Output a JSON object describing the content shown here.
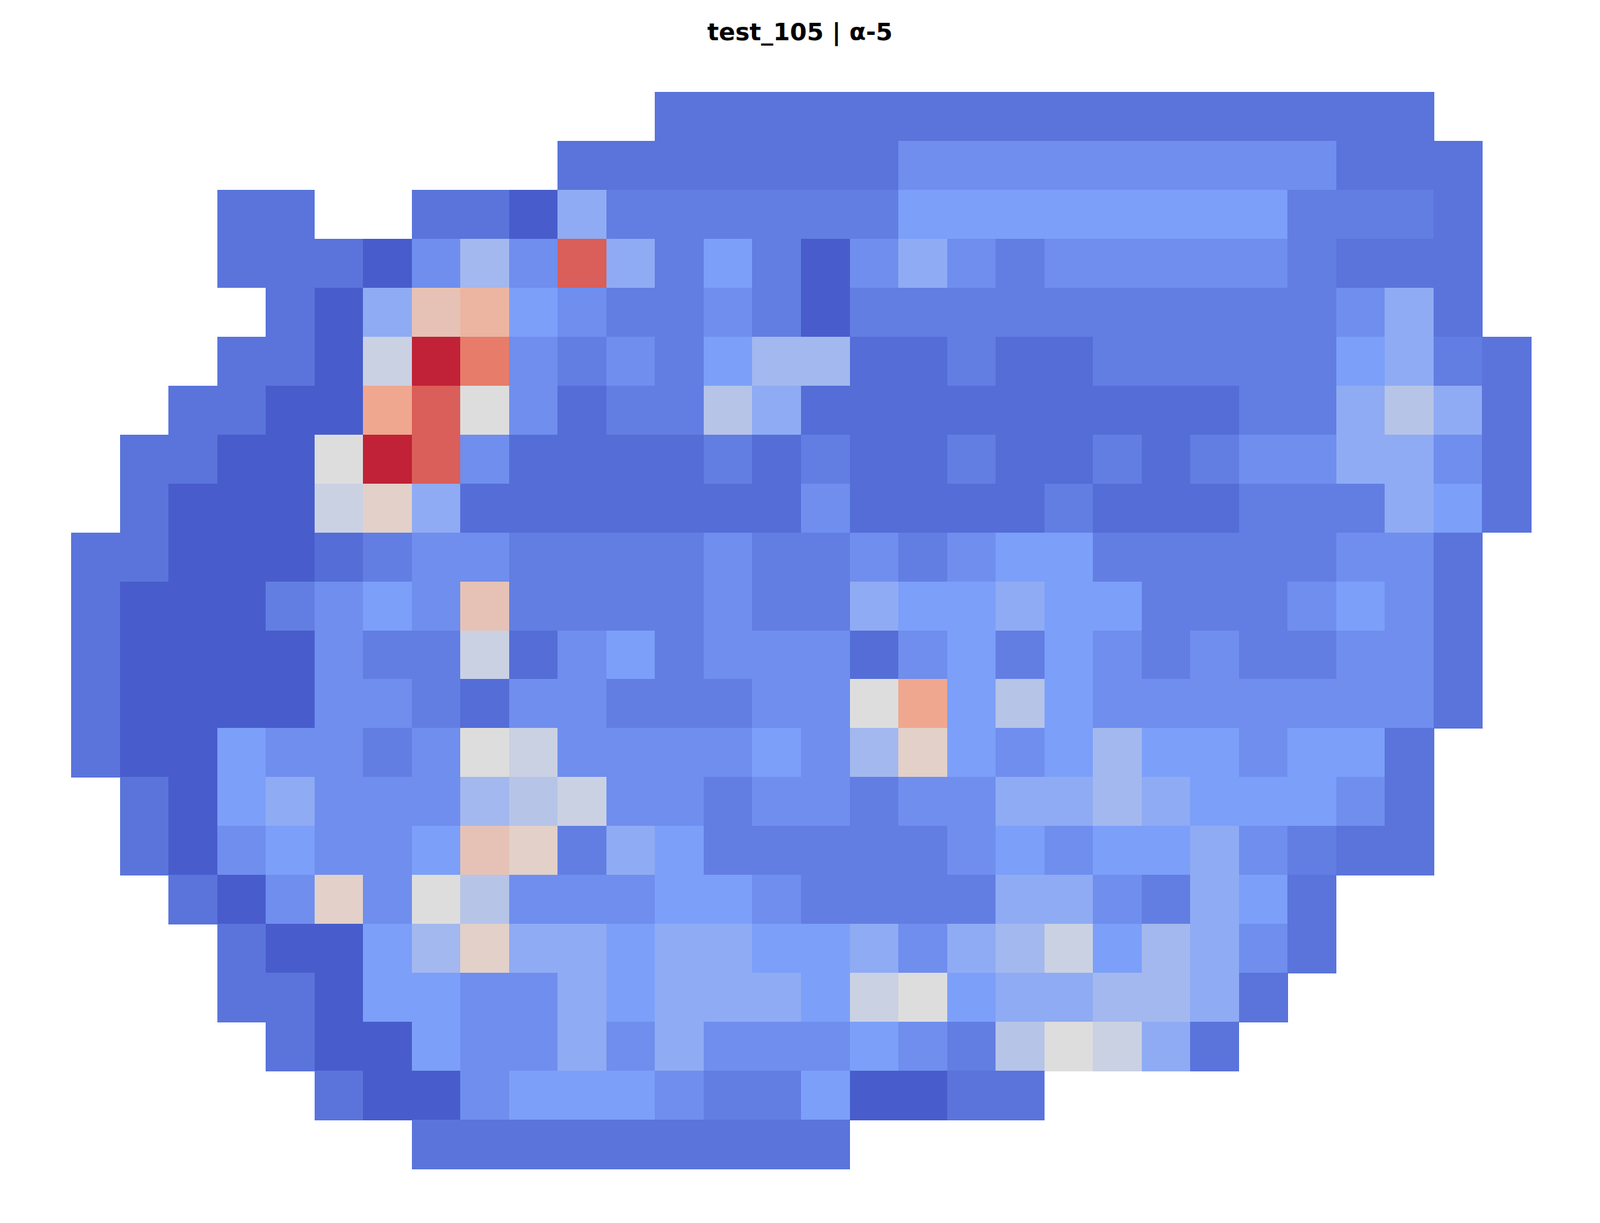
{
  "chart_data": {
    "type": "heatmap",
    "title": "test_105 | α-5",
    "tick_labels": false,
    "grid": false,
    "color_range": [
      0,
      1
    ],
    "cells": [
      [
        null,
        null,
        null,
        null,
        null,
        null,
        null,
        null,
        null,
        null,
        null,
        null,
        0.12,
        0.12,
        0.12,
        0.12,
        0.12,
        0.12,
        0.12,
        0.12,
        0.12,
        0.12,
        0.12,
        0.12,
        0.12,
        0.12,
        0.12,
        0.12,
        null,
        null
      ],
      [
        null,
        null,
        null,
        null,
        null,
        null,
        null,
        null,
        null,
        null,
        0.12,
        0.12,
        0.12,
        0.12,
        0.12,
        0.12,
        0.12,
        0.2,
        0.2,
        0.2,
        0.2,
        0.2,
        0.2,
        0.2,
        0.2,
        0.2,
        0.12,
        0.12,
        0.12,
        null
      ],
      [
        null,
        null,
        null,
        0.12,
        0.12,
        null,
        null,
        0.12,
        0.12,
        0.05,
        0.3,
        0.15,
        0.15,
        0.15,
        0.15,
        0.15,
        0.15,
        0.25,
        0.25,
        0.25,
        0.25,
        0.25,
        0.25,
        0.25,
        0.25,
        0.15,
        0.15,
        0.15,
        0.12,
        null
      ],
      [
        null,
        null,
        null,
        0.12,
        0.12,
        0.12,
        0.05,
        0.2,
        0.35,
        0.2,
        0.85,
        0.3,
        0.15,
        0.25,
        0.15,
        0.05,
        0.2,
        0.3,
        0.2,
        0.15,
        0.2,
        0.2,
        0.2,
        0.2,
        0.2,
        0.15,
        0.12,
        0.12,
        0.12,
        null
      ],
      [
        null,
        null,
        null,
        null,
        0.12,
        0.05,
        0.3,
        0.6,
        0.65,
        0.25,
        0.2,
        0.15,
        0.15,
        0.2,
        0.15,
        0.05,
        0.15,
        0.15,
        0.15,
        0.15,
        0.15,
        0.15,
        0.15,
        0.15,
        0.15,
        0.15,
        0.2,
        0.3,
        0.12,
        null
      ],
      [
        null,
        null,
        null,
        0.12,
        0.12,
        0.05,
        0.45,
        0.95,
        0.8,
        0.2,
        0.15,
        0.2,
        0.15,
        0.25,
        0.35,
        0.35,
        0.1,
        0.1,
        0.15,
        0.1,
        0.1,
        0.15,
        0.15,
        0.15,
        0.15,
        0.15,
        0.25,
        0.3,
        0.15,
        0.12
      ],
      [
        null,
        null,
        0.12,
        0.12,
        0.05,
        0.05,
        0.7,
        0.85,
        0.5,
        0.2,
        0.1,
        0.15,
        0.15,
        0.4,
        0.3,
        0.1,
        0.1,
        0.1,
        0.1,
        0.1,
        0.1,
        0.1,
        0.1,
        0.1,
        0.15,
        0.15,
        0.3,
        0.4,
        0.3,
        0.12
      ],
      [
        null,
        0.12,
        0.12,
        0.05,
        0.05,
        0.5,
        0.95,
        0.85,
        0.2,
        0.1,
        0.1,
        0.1,
        0.1,
        0.15,
        0.1,
        0.15,
        0.1,
        0.1,
        0.15,
        0.1,
        0.1,
        0.15,
        0.1,
        0.15,
        0.2,
        0.2,
        0.3,
        0.3,
        0.2,
        0.12
      ],
      [
        null,
        0.12,
        0.05,
        0.05,
        0.05,
        0.45,
        0.55,
        0.3,
        0.1,
        0.1,
        0.1,
        0.1,
        0.1,
        0.1,
        0.1,
        0.2,
        0.1,
        0.1,
        0.1,
        0.1,
        0.15,
        0.1,
        0.1,
        0.1,
        0.15,
        0.15,
        0.15,
        0.3,
        0.25,
        0.12
      ],
      [
        0.12,
        0.12,
        0.05,
        0.05,
        0.05,
        0.1,
        0.15,
        0.2,
        0.2,
        0.15,
        0.15,
        0.15,
        0.15,
        0.2,
        0.15,
        0.15,
        0.2,
        0.15,
        0.2,
        0.25,
        0.25,
        0.15,
        0.15,
        0.15,
        0.15,
        0.15,
        0.2,
        0.2,
        0.12,
        null
      ],
      [
        0.12,
        0.05,
        0.05,
        0.05,
        0.15,
        0.2,
        0.25,
        0.2,
        0.6,
        0.15,
        0.15,
        0.15,
        0.15,
        0.2,
        0.15,
        0.15,
        0.3,
        0.25,
        0.25,
        0.3,
        0.25,
        0.25,
        0.15,
        0.15,
        0.15,
        0.2,
        0.25,
        0.2,
        0.12,
        null
      ],
      [
        0.12,
        0.05,
        0.05,
        0.05,
        0.05,
        0.2,
        0.15,
        0.15,
        0.45,
        0.1,
        0.2,
        0.25,
        0.15,
        0.2,
        0.2,
        0.2,
        0.1,
        0.2,
        0.25,
        0.15,
        0.25,
        0.2,
        0.15,
        0.2,
        0.15,
        0.15,
        0.2,
        0.2,
        0.12,
        null
      ],
      [
        0.12,
        0.05,
        0.05,
        0.05,
        0.05,
        0.2,
        0.2,
        0.15,
        0.1,
        0.2,
        0.2,
        0.15,
        0.15,
        0.15,
        0.2,
        0.2,
        0.5,
        0.7,
        0.25,
        0.4,
        0.25,
        0.2,
        0.2,
        0.2,
        0.2,
        0.2,
        0.2,
        0.2,
        0.12,
        null
      ],
      [
        0.12,
        0.05,
        0.05,
        0.25,
        0.2,
        0.2,
        0.15,
        0.2,
        0.5,
        0.45,
        0.2,
        0.2,
        0.2,
        0.2,
        0.25,
        0.2,
        0.35,
        0.55,
        0.25,
        0.2,
        0.25,
        0.35,
        0.25,
        0.25,
        0.2,
        0.25,
        0.25,
        0.12,
        null,
        null
      ],
      [
        null,
        0.12,
        0.05,
        0.25,
        0.3,
        0.2,
        0.2,
        0.2,
        0.35,
        0.4,
        0.45,
        0.2,
        0.2,
        0.15,
        0.2,
        0.2,
        0.15,
        0.2,
        0.2,
        0.3,
        0.3,
        0.35,
        0.3,
        0.25,
        0.25,
        0.25,
        0.2,
        0.12,
        null,
        null
      ],
      [
        null,
        0.12,
        0.05,
        0.2,
        0.25,
        0.2,
        0.2,
        0.25,
        0.6,
        0.55,
        0.15,
        0.3,
        0.25,
        0.15,
        0.15,
        0.15,
        0.15,
        0.15,
        0.2,
        0.25,
        0.2,
        0.25,
        0.25,
        0.3,
        0.2,
        0.15,
        0.12,
        0.12,
        null,
        null
      ],
      [
        null,
        null,
        0.12,
        0.05,
        0.2,
        0.55,
        0.2,
        0.5,
        0.4,
        0.2,
        0.2,
        0.2,
        0.25,
        0.25,
        0.2,
        0.15,
        0.15,
        0.15,
        0.15,
        0.3,
        0.3,
        0.2,
        0.15,
        0.3,
        0.25,
        0.12,
        null,
        null,
        null,
        null
      ],
      [
        null,
        null,
        null,
        0.12,
        0.05,
        0.05,
        0.25,
        0.35,
        0.55,
        0.3,
        0.3,
        0.25,
        0.3,
        0.3,
        0.25,
        0.25,
        0.3,
        0.2,
        0.3,
        0.35,
        0.45,
        0.25,
        0.35,
        0.3,
        0.2,
        0.12,
        null,
        null,
        null,
        null
      ],
      [
        null,
        null,
        null,
        0.12,
        0.12,
        0.05,
        0.25,
        0.25,
        0.2,
        0.2,
        0.3,
        0.25,
        0.3,
        0.3,
        0.3,
        0.25,
        0.45,
        0.5,
        0.25,
        0.3,
        0.3,
        0.35,
        0.35,
        0.3,
        0.12,
        null,
        null,
        null,
        null,
        null
      ],
      [
        null,
        null,
        null,
        null,
        0.12,
        0.05,
        0.05,
        0.25,
        0.2,
        0.2,
        0.3,
        0.2,
        0.3,
        0.2,
        0.2,
        0.2,
        0.25,
        0.2,
        0.15,
        0.4,
        0.5,
        0.45,
        0.3,
        0.12,
        null,
        null,
        null,
        null,
        null,
        null
      ],
      [
        null,
        null,
        null,
        null,
        null,
        0.12,
        0.05,
        0.05,
        0.2,
        0.25,
        0.25,
        0.25,
        0.2,
        0.15,
        0.15,
        0.25,
        0.05,
        0.05,
        0.12,
        0.12,
        null,
        null,
        null,
        null,
        null,
        null,
        null,
        null,
        null,
        null
      ],
      [
        null,
        null,
        null,
        null,
        null,
        null,
        null,
        0.12,
        0.12,
        0.12,
        0.12,
        0.12,
        0.12,
        0.12,
        0.12,
        0.12,
        null,
        null,
        null,
        null,
        null,
        null,
        null,
        null,
        null,
        null,
        null,
        null,
        null,
        null
      ]
    ]
  }
}
